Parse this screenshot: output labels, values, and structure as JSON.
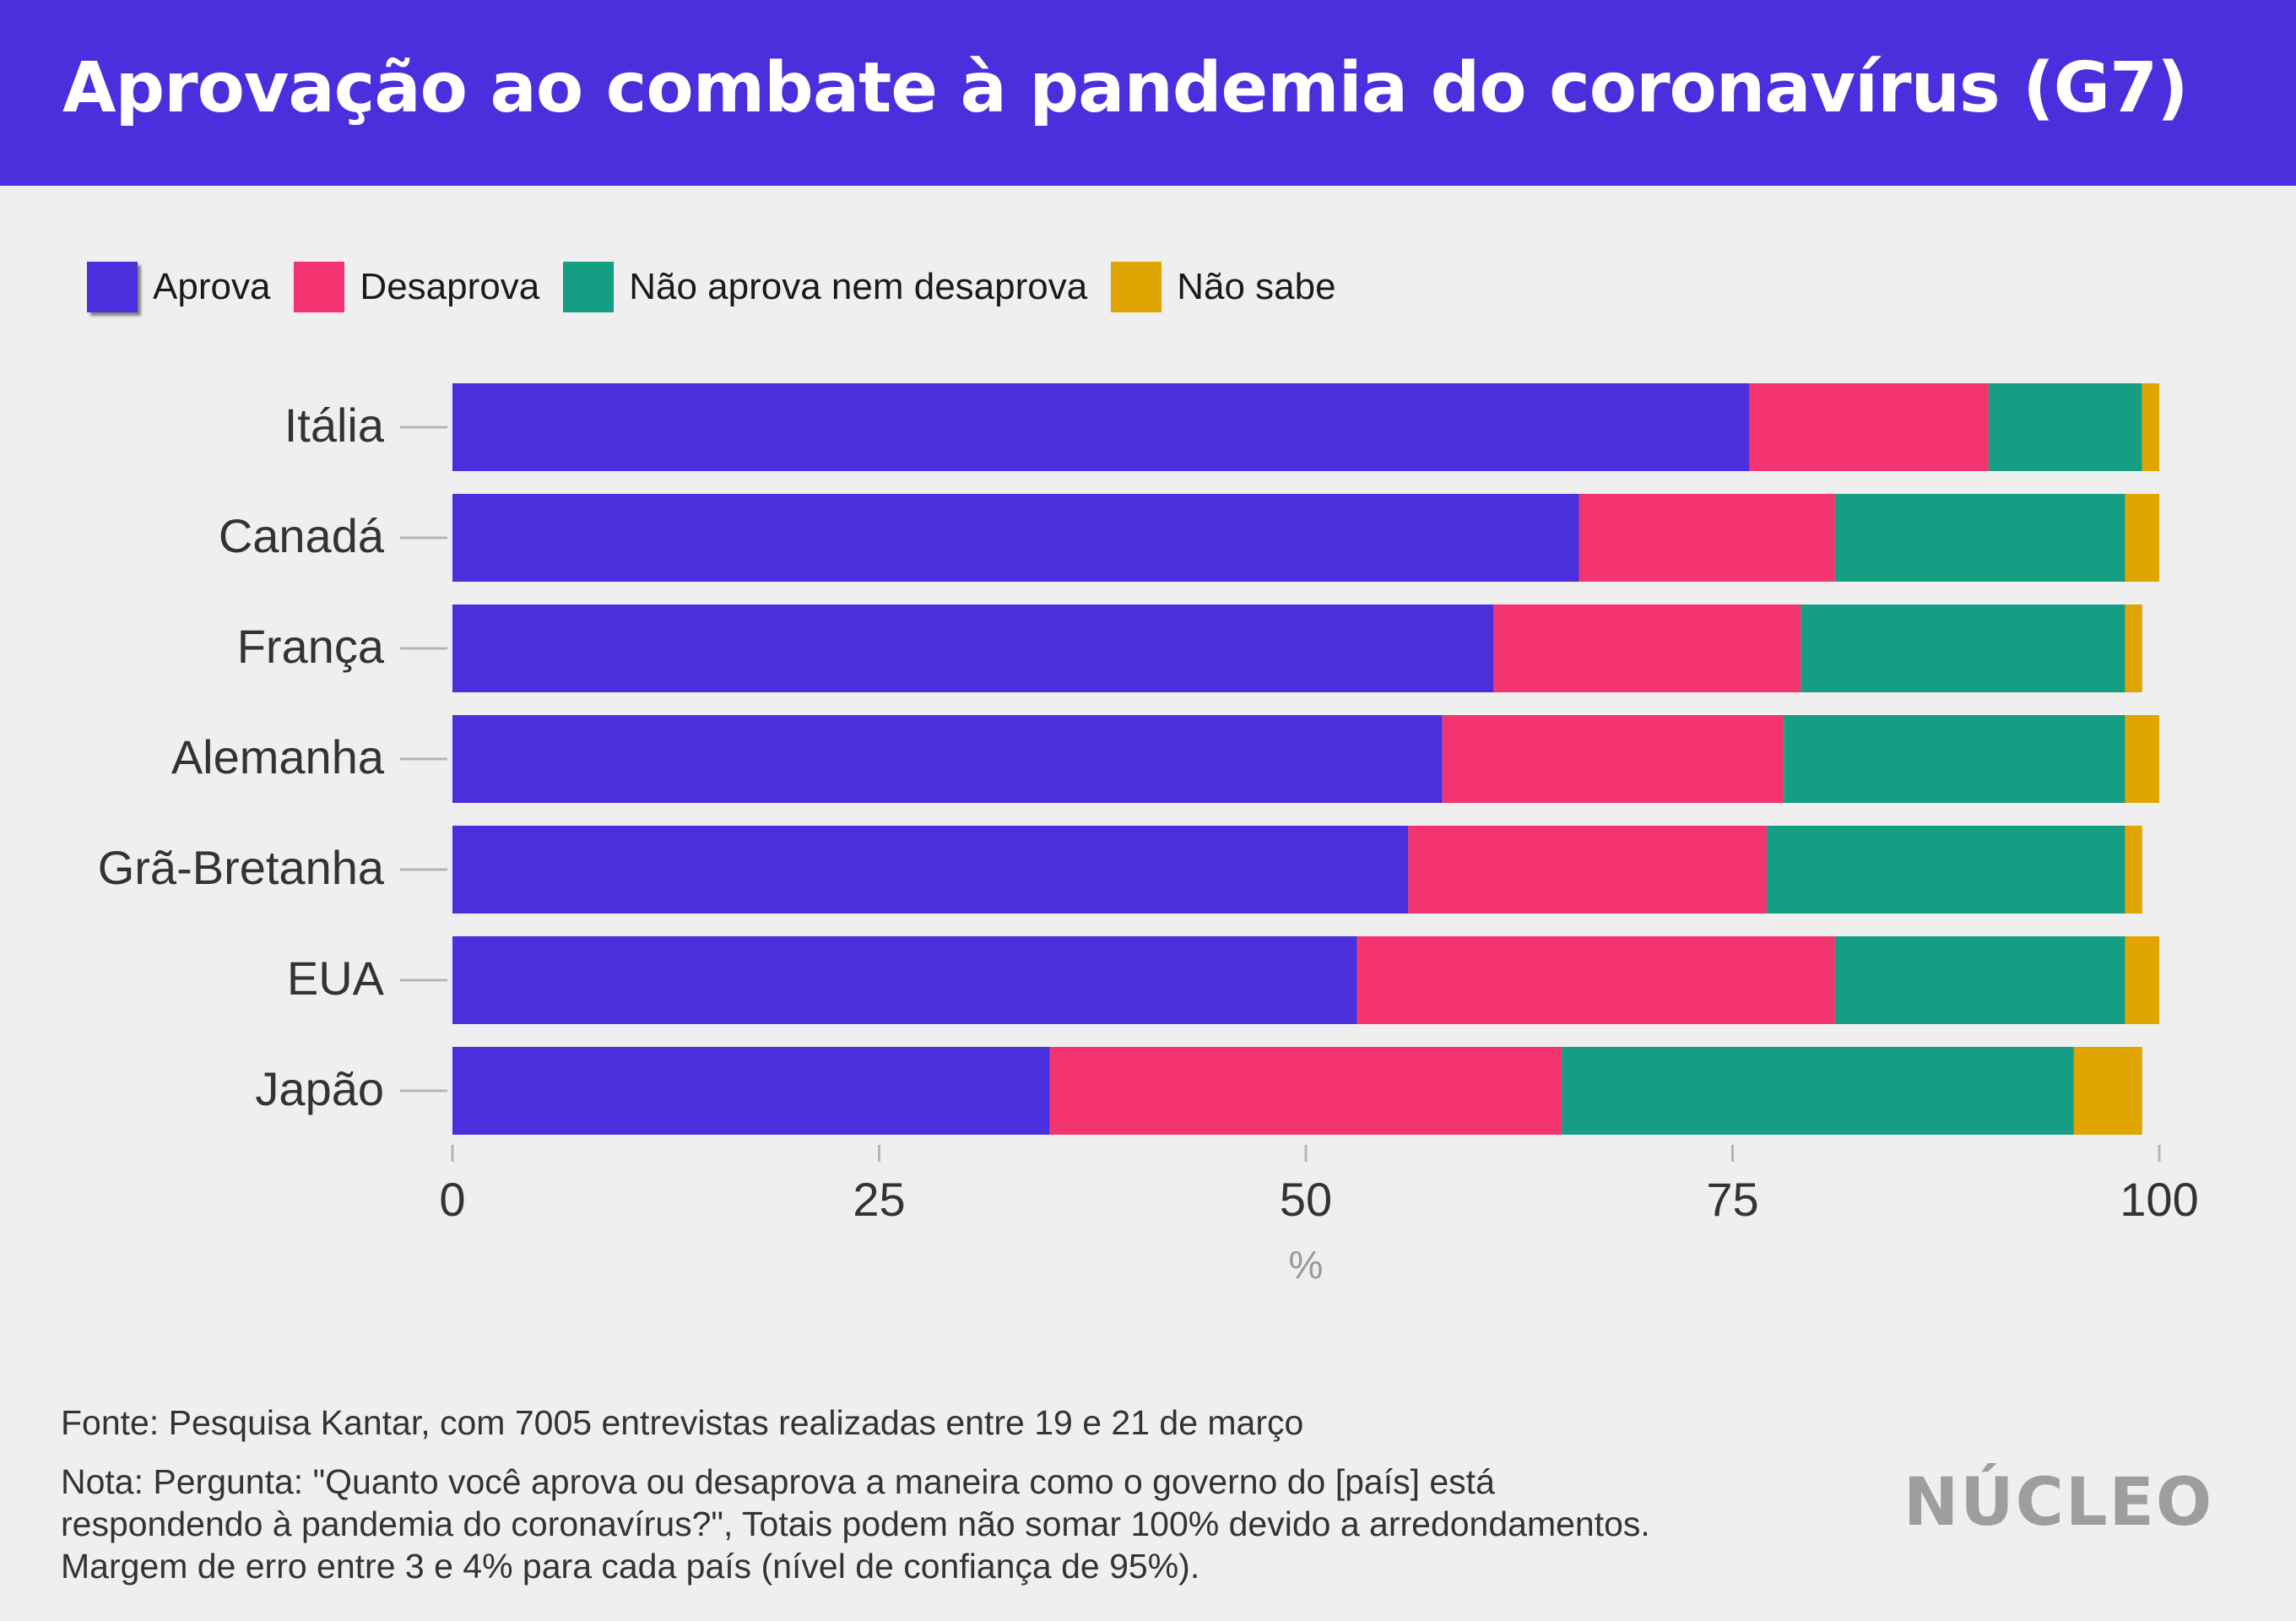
{
  "header": {
    "title": "Aprovação ao combate à pandemia do coronavírus (G7)"
  },
  "legend": [
    {
      "label": "Aprova",
      "color": "#4a30dd"
    },
    {
      "label": "Desaprova",
      "color": "#f43470"
    },
    {
      "label": "Não aprova nem desaprova",
      "color": "#169e84"
    },
    {
      "label": "Não sabe",
      "color": "#e0a500"
    }
  ],
  "chart_data": {
    "type": "bar",
    "orientation": "horizontal",
    "stacked": true,
    "categories": [
      "Itália",
      "Canadá",
      "França",
      "Alemanha",
      "Grã-Bretanha",
      "EUA",
      "Japão"
    ],
    "series": [
      {
        "name": "Aprova",
        "color": "#4a30dd",
        "values": [
          76,
          66,
          61,
          58,
          56,
          53,
          35
        ]
      },
      {
        "name": "Desaprova",
        "color": "#f43470",
        "values": [
          14,
          15,
          18,
          20,
          21,
          28,
          30
        ]
      },
      {
        "name": "Não aprova nem desaprova",
        "color": "#169e84",
        "values": [
          9,
          17,
          19,
          20,
          21,
          17,
          30
        ]
      },
      {
        "name": "Não sabe",
        "color": "#e0a500",
        "values": [
          1,
          2,
          1,
          2,
          1,
          2,
          4
        ]
      }
    ],
    "xlim": [
      0,
      100
    ],
    "xticks": [
      "0",
      "25",
      "50",
      "75",
      "100"
    ],
    "xlabel": "%",
    "ylabel": "",
    "grid": false,
    "legend_position": "top-left"
  },
  "footer": {
    "source": "Fonte: Pesquisa Kantar, com 7005 entrevistas realizadas entre 19 e 21 de março",
    "note": "Nota: Pergunta: \"Quanto você aprova ou desaprova a maneira como o governo do [país] está respondendo à pandemia do coronavírus?\", Totais podem não somar 100% devido a arredondamentos. Margem de erro entre 3 e 4% para cada país (nível de confiança de 95%)."
  },
  "logo": {
    "text": "NÚCLEO",
    "color": "#9e9e9e"
  }
}
